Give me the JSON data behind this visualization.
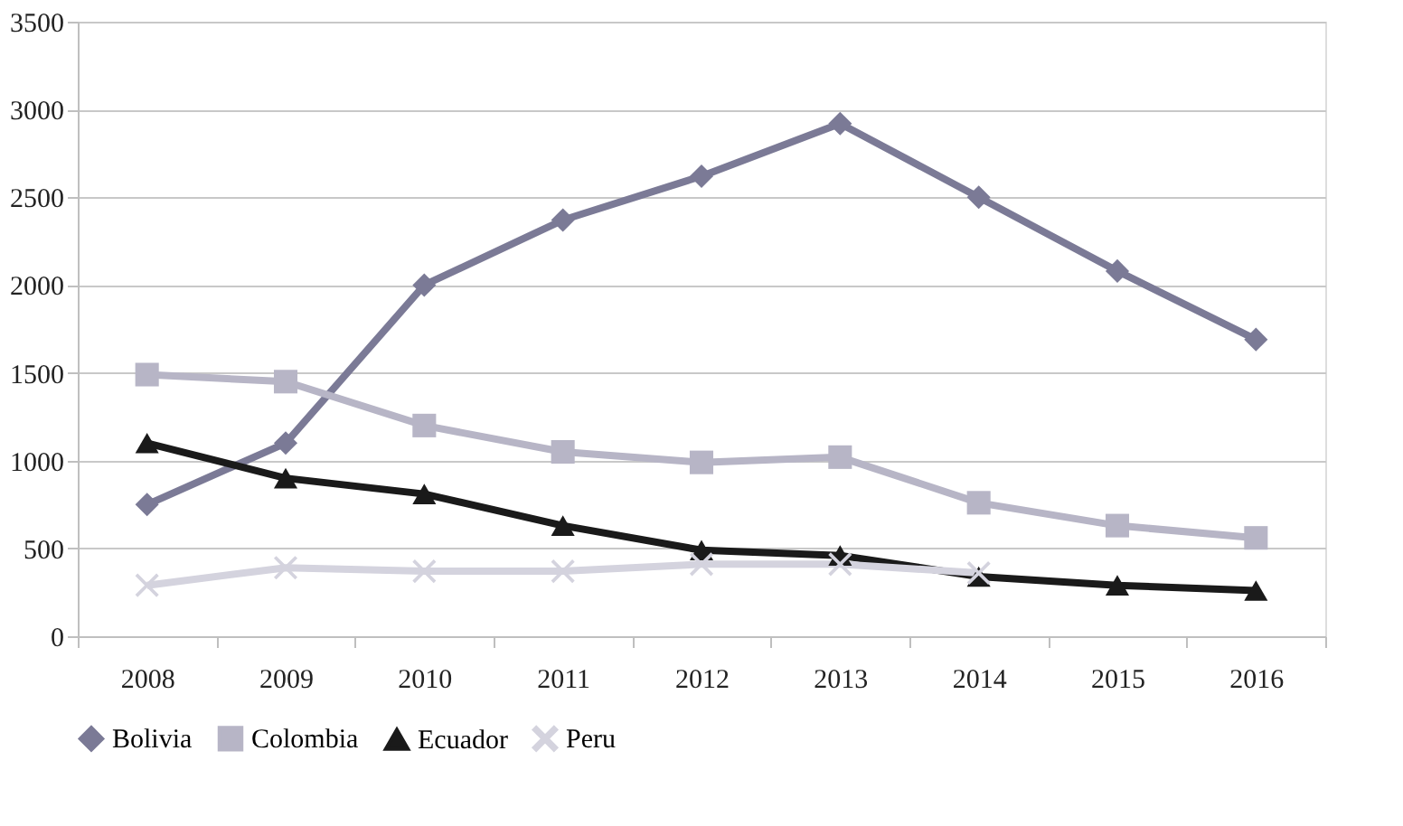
{
  "chart_data": {
    "type": "line",
    "categories": [
      "2008",
      "2009",
      "2010",
      "2011",
      "2012",
      "2013",
      "2014",
      "2015",
      "2016"
    ],
    "series": [
      {
        "name": "Bolivia",
        "color": "#7b7a96",
        "marker": "diamond",
        "values": [
          750,
          1100,
          2000,
          2370,
          2620,
          2920,
          2500,
          2080,
          1690
        ]
      },
      {
        "name": "Colombia",
        "color": "#b7b5c6",
        "marker": "square",
        "values": [
          1490,
          1450,
          1200,
          1050,
          990,
          1020,
          760,
          630,
          560
        ]
      },
      {
        "name": "Ecuador",
        "color": "#1a1a1a",
        "marker": "triangle",
        "values": [
          1100,
          900,
          810,
          630,
          490,
          460,
          340,
          290,
          260
        ]
      },
      {
        "name": "Peru",
        "color": "#d4d3de",
        "marker": "cross",
        "values": [
          290,
          390,
          370,
          370,
          410,
          410,
          360,
          null,
          null
        ]
      }
    ],
    "ylim": [
      0,
      3500
    ],
    "yticks": [
      0,
      500,
      1000,
      1500,
      2000,
      2500,
      3000,
      3500
    ],
    "grid": "y",
    "legend": "bottom",
    "line_style": "solid"
  }
}
